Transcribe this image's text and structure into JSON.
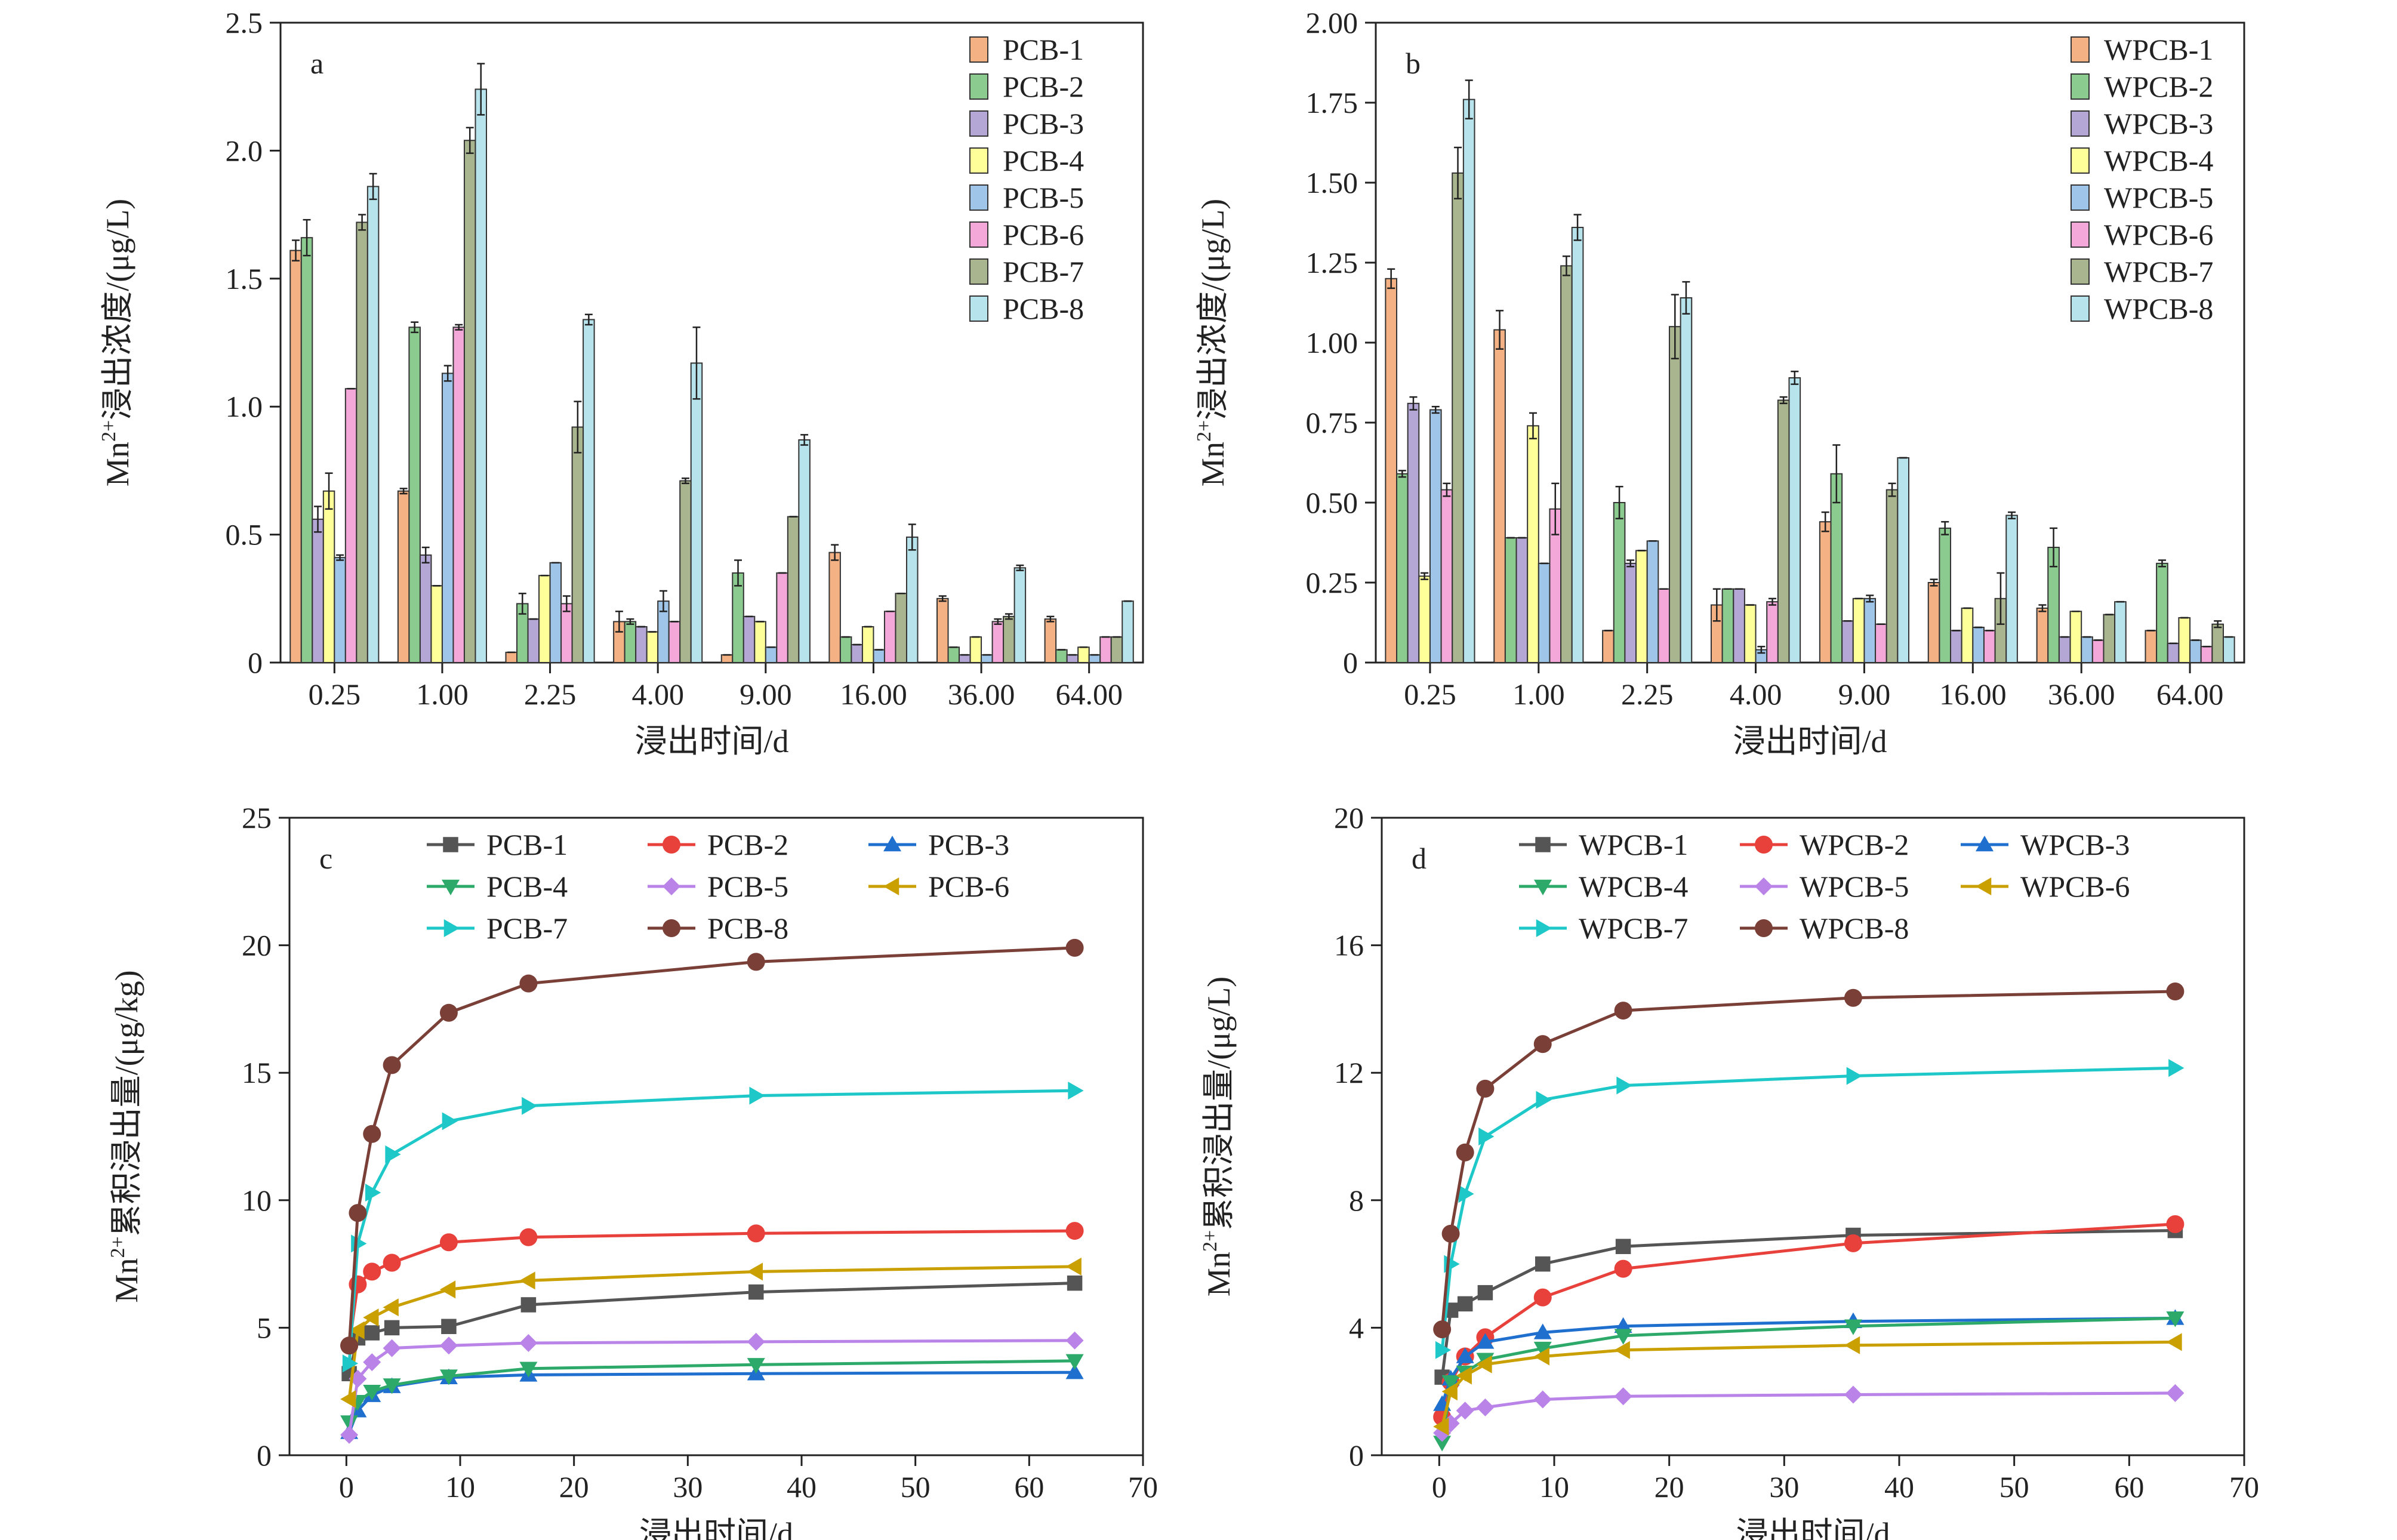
{
  "figure": {
    "panels": [
      {
        "letter": "a",
        "xlabel": "浸出时间/d",
        "ylabel": {
          "pre": "Mn",
          "sup": "2+",
          "post": "浸出浓度/(μg/L)"
        },
        "ytick_labels": [
          "0",
          "0.5",
          "1.0",
          "1.5",
          "2.0",
          "2.5"
        ],
        "xtick_labels": [
          "0.25",
          "1.00",
          "2.25",
          "4.00",
          "9.00",
          "16.00",
          "36.00",
          "64.00"
        ]
      },
      {
        "letter": "b",
        "xlabel": "浸出时间/d",
        "ylabel": {
          "pre": "Mn",
          "sup": "2+",
          "post": "浸出浓度/(μg/L)"
        },
        "ytick_labels": [
          "0",
          "0.25",
          "0.50",
          "0.75",
          "1.00",
          "1.25",
          "1.50",
          "1.75",
          "2.00"
        ],
        "xtick_labels": [
          "0.25",
          "1.00",
          "2.25",
          "4.00",
          "9.00",
          "16.00",
          "36.00",
          "64.00"
        ]
      },
      {
        "letter": "c",
        "xlabel": "浸出时间/d",
        "ylabel": {
          "pre": "Mn",
          "sup": "2+",
          "post": "累积浸出量/(μg/kg)"
        },
        "ytick_labels": [
          "0",
          "5",
          "10",
          "15",
          "20",
          "25"
        ],
        "xtick_labels": [
          "0",
          "10",
          "20",
          "30",
          "40",
          "50",
          "60",
          "70"
        ]
      },
      {
        "letter": "d",
        "xlabel": "浸出时间/d",
        "ylabel": {
          "pre": "Mn",
          "sup": "2+",
          "post": "累积浸出量/(μg/L)"
        },
        "ytick_labels": [
          "0",
          "4",
          "8",
          "12",
          "16",
          "20"
        ],
        "xtick_labels": [
          "0",
          "10",
          "20",
          "30",
          "40",
          "50",
          "60",
          "70"
        ]
      }
    ]
  },
  "chart_data": [
    {
      "id": "a",
      "type": "bar",
      "categories": [
        "0.25",
        "1.00",
        "2.25",
        "4.00",
        "9.00",
        "16.00",
        "36.00",
        "64.00"
      ],
      "ylim": [
        0,
        2.5
      ],
      "yticks": [
        0,
        0.5,
        1.0,
        1.5,
        2.0,
        2.5
      ],
      "xlabel": "浸出时间/d",
      "ylabel": "Mn2+浸出浓度/(μg/L)",
      "legend_position": "top-right",
      "error_bars": true,
      "series": [
        {
          "name": "PCB-1",
          "color": "#F4B183",
          "values": [
            1.61,
            0.67,
            0.04,
            0.16,
            0.03,
            0.43,
            0.25,
            0.17
          ],
          "errors": [
            0.04,
            0.01,
            0.0,
            0.04,
            0.0,
            0.03,
            0.01,
            0.01
          ]
        },
        {
          "name": "PCB-2",
          "color": "#8CCB8F",
          "values": [
            1.66,
            1.31,
            0.23,
            0.16,
            0.35,
            0.1,
            0.06,
            0.05
          ],
          "errors": [
            0.07,
            0.02,
            0.04,
            0.01,
            0.05,
            0.0,
            0.0,
            0.0
          ]
        },
        {
          "name": "PCB-3",
          "color": "#B4A7D6",
          "values": [
            0.56,
            0.42,
            0.17,
            0.14,
            0.18,
            0.07,
            0.03,
            0.03
          ],
          "errors": [
            0.05,
            0.03,
            0.0,
            0.0,
            0.0,
            0.0,
            0.0,
            0.0
          ]
        },
        {
          "name": "PCB-4",
          "color": "#FFFF99",
          "values": [
            0.67,
            0.3,
            0.34,
            0.12,
            0.16,
            0.14,
            0.1,
            0.06
          ],
          "errors": [
            0.07,
            0.0,
            0.0,
            0.0,
            0.0,
            0.0,
            0.0,
            0.0
          ]
        },
        {
          "name": "PCB-5",
          "color": "#9FC5E8",
          "values": [
            0.41,
            1.13,
            0.39,
            0.24,
            0.06,
            0.05,
            0.03,
            0.03
          ],
          "errors": [
            0.01,
            0.03,
            0.0,
            0.04,
            0.0,
            0.0,
            0.0,
            0.0
          ]
        },
        {
          "name": "PCB-6",
          "color": "#F4A7D9",
          "values": [
            1.07,
            1.31,
            0.23,
            0.16,
            0.35,
            0.2,
            0.16,
            0.1
          ],
          "errors": [
            0.0,
            0.01,
            0.03,
            0.0,
            0.0,
            0.0,
            0.01,
            0.0
          ]
        },
        {
          "name": "PCB-7",
          "color": "#A9B58E",
          "values": [
            1.72,
            2.04,
            0.92,
            0.71,
            0.57,
            0.27,
            0.18,
            0.1
          ],
          "errors": [
            0.03,
            0.05,
            0.1,
            0.01,
            0.0,
            0.0,
            0.01,
            0.0
          ]
        },
        {
          "name": "PCB-8",
          "color": "#B7E4EC",
          "values": [
            1.86,
            2.24,
            1.34,
            1.17,
            0.87,
            0.49,
            0.37,
            0.24
          ],
          "errors": [
            0.05,
            0.1,
            0.02,
            0.14,
            0.02,
            0.05,
            0.01,
            0.0
          ]
        }
      ]
    },
    {
      "id": "b",
      "type": "bar",
      "categories": [
        "0.25",
        "1.00",
        "2.25",
        "4.00",
        "9.00",
        "16.00",
        "36.00",
        "64.00"
      ],
      "ylim": [
        0,
        2.0
      ],
      "yticks": [
        0,
        0.25,
        0.5,
        0.75,
        1.0,
        1.25,
        1.5,
        1.75,
        2.0
      ],
      "xlabel": "浸出时间/d",
      "ylabel": "Mn2+浸出浓度/(μg/L)",
      "legend_position": "top-right",
      "error_bars": true,
      "series": [
        {
          "name": "WPCB-1",
          "color": "#F4B183",
          "values": [
            1.2,
            1.04,
            0.1,
            0.18,
            0.44,
            0.25,
            0.17,
            0.1
          ],
          "errors": [
            0.03,
            0.06,
            0.0,
            0.05,
            0.03,
            0.01,
            0.01,
            0.0
          ]
        },
        {
          "name": "WPCB-2",
          "color": "#8CCB8F",
          "values": [
            0.59,
            0.39,
            0.5,
            0.23,
            0.59,
            0.42,
            0.36,
            0.31
          ],
          "errors": [
            0.01,
            0.0,
            0.05,
            0.0,
            0.09,
            0.02,
            0.06,
            0.01
          ]
        },
        {
          "name": "WPCB-3",
          "color": "#B4A7D6",
          "values": [
            0.81,
            0.39,
            0.31,
            0.23,
            0.13,
            0.1,
            0.08,
            0.06
          ],
          "errors": [
            0.02,
            0.0,
            0.01,
            0.0,
            0.0,
            0.0,
            0.0,
            0.0
          ]
        },
        {
          "name": "WPCB-4",
          "color": "#FFFF99",
          "values": [
            0.27,
            0.74,
            0.35,
            0.18,
            0.2,
            0.17,
            0.16,
            0.14
          ],
          "errors": [
            0.01,
            0.04,
            0.0,
            0.0,
            0.0,
            0.0,
            0.0,
            0.0
          ]
        },
        {
          "name": "WPCB-5",
          "color": "#9FC5E8",
          "values": [
            0.79,
            0.31,
            0.38,
            0.04,
            0.2,
            0.11,
            0.08,
            0.07
          ],
          "errors": [
            0.01,
            0.0,
            0.0,
            0.01,
            0.01,
            0.0,
            0.0,
            0.0
          ]
        },
        {
          "name": "WPCB-6",
          "color": "#F4A7D9",
          "values": [
            0.54,
            0.48,
            0.23,
            0.19,
            0.12,
            0.1,
            0.07,
            0.05
          ],
          "errors": [
            0.02,
            0.08,
            0.0,
            0.01,
            0.0,
            0.0,
            0.0,
            0.0
          ]
        },
        {
          "name": "WPCB-7",
          "color": "#A9B58E",
          "values": [
            1.53,
            1.24,
            1.05,
            0.82,
            0.54,
            0.2,
            0.15,
            0.12
          ],
          "errors": [
            0.08,
            0.03,
            0.1,
            0.01,
            0.02,
            0.08,
            0.0,
            0.01
          ]
        },
        {
          "name": "WPCB-8",
          "color": "#B7E4EC",
          "values": [
            1.76,
            1.36,
            1.14,
            0.89,
            0.64,
            0.46,
            0.19,
            0.08
          ],
          "errors": [
            0.06,
            0.04,
            0.05,
            0.02,
            0.0,
            0.01,
            0.0,
            0.0
          ]
        }
      ]
    },
    {
      "id": "c",
      "type": "line",
      "x": [
        0.25,
        1.0,
        2.25,
        4.0,
        9.0,
        16.0,
        36.0,
        64.0
      ],
      "xlim": [
        -5,
        70
      ],
      "ylim": [
        0,
        25
      ],
      "xticks": [
        0,
        10,
        20,
        30,
        40,
        50,
        60,
        70
      ],
      "yticks": [
        0,
        5,
        10,
        15,
        20,
        25
      ],
      "xlabel": "浸出时间/d",
      "ylabel": "Mn2+累积浸出量/(μg/kg)",
      "legend_position": "top-center",
      "series": [
        {
          "name": "PCB-1",
          "color": "#555555",
          "marker": "square",
          "values": [
            3.2,
            4.6,
            4.8,
            5.0,
            5.05,
            5.9,
            6.4,
            6.75
          ]
        },
        {
          "name": "PCB-2",
          "color": "#E8413C",
          "marker": "circle",
          "values": [
            4.3,
            6.7,
            7.2,
            7.55,
            8.35,
            8.55,
            8.7,
            8.8
          ]
        },
        {
          "name": "PCB-3",
          "color": "#1F6FCF",
          "marker": "triangle-up",
          "values": [
            0.9,
            1.75,
            2.35,
            2.7,
            3.05,
            3.15,
            3.2,
            3.25
          ]
        },
        {
          "name": "PCB-4",
          "color": "#2DAA6A",
          "marker": "triangle-down",
          "values": [
            1.3,
            2.1,
            2.5,
            2.75,
            3.1,
            3.4,
            3.55,
            3.7
          ]
        },
        {
          "name": "PCB-5",
          "color": "#B983E8",
          "marker": "diamond",
          "values": [
            0.8,
            3.0,
            3.65,
            4.2,
            4.3,
            4.4,
            4.45,
            4.5
          ]
        },
        {
          "name": "PCB-6",
          "color": "#C9A000",
          "marker": "triangle-left",
          "values": [
            2.2,
            4.9,
            5.4,
            5.8,
            6.5,
            6.85,
            7.2,
            7.4
          ]
        },
        {
          "name": "PCB-7",
          "color": "#1EC8C8",
          "marker": "triangle-right",
          "values": [
            3.6,
            8.3,
            10.3,
            11.8,
            13.1,
            13.7,
            14.1,
            14.3
          ]
        },
        {
          "name": "PCB-8",
          "color": "#7A4038",
          "marker": "circle",
          "values": [
            4.3,
            9.5,
            12.6,
            15.3,
            17.35,
            18.5,
            19.35,
            19.9
          ]
        }
      ]
    },
    {
      "id": "d",
      "type": "line",
      "x": [
        0.25,
        1.0,
        2.25,
        4.0,
        9.0,
        16.0,
        36.0,
        64.0
      ],
      "xlim": [
        -5,
        70
      ],
      "ylim": [
        0,
        20
      ],
      "xticks": [
        0,
        10,
        20,
        30,
        40,
        50,
        60,
        70
      ],
      "yticks": [
        0,
        4,
        8,
        12,
        16,
        20
      ],
      "xlabel": "浸出时间/d",
      "ylabel": "Mn2+累积浸出量/(μg/L)",
      "legend_position": "top-center",
      "series": [
        {
          "name": "WPCB-1",
          "color": "#555555",
          "marker": "square",
          "values": [
            2.45,
            4.55,
            4.75,
            5.1,
            6.0,
            6.55,
            6.9,
            7.05
          ]
        },
        {
          "name": "WPCB-2",
          "color": "#E8413C",
          "marker": "circle",
          "values": [
            1.2,
            2.3,
            3.1,
            3.7,
            4.95,
            5.85,
            6.65,
            7.25
          ]
        },
        {
          "name": "WPCB-3",
          "color": "#1F6FCF",
          "marker": "triangle-up",
          "values": [
            1.6,
            2.4,
            3.1,
            3.55,
            3.85,
            4.05,
            4.2,
            4.3
          ]
        },
        {
          "name": "WPCB-4",
          "color": "#2DAA6A",
          "marker": "triangle-down",
          "values": [
            0.4,
            2.3,
            2.6,
            3.0,
            3.35,
            3.75,
            4.05,
            4.3
          ]
        },
        {
          "name": "WPCB-5",
          "color": "#B983E8",
          "marker": "diamond",
          "values": [
            0.7,
            1.0,
            1.4,
            1.5,
            1.75,
            1.85,
            1.9,
            1.95
          ]
        },
        {
          "name": "WPCB-6",
          "color": "#C9A000",
          "marker": "triangle-left",
          "values": [
            0.9,
            2.0,
            2.5,
            2.85,
            3.1,
            3.3,
            3.45,
            3.55
          ]
        },
        {
          "name": "WPCB-7",
          "color": "#1EC8C8",
          "marker": "triangle-right",
          "values": [
            3.3,
            6.0,
            8.2,
            10.0,
            11.15,
            11.6,
            11.9,
            12.15
          ]
        },
        {
          "name": "WPCB-8",
          "color": "#7A4038",
          "marker": "circle",
          "values": [
            3.95,
            6.95,
            9.5,
            11.5,
            12.9,
            13.95,
            14.35,
            14.55
          ]
        }
      ]
    }
  ]
}
